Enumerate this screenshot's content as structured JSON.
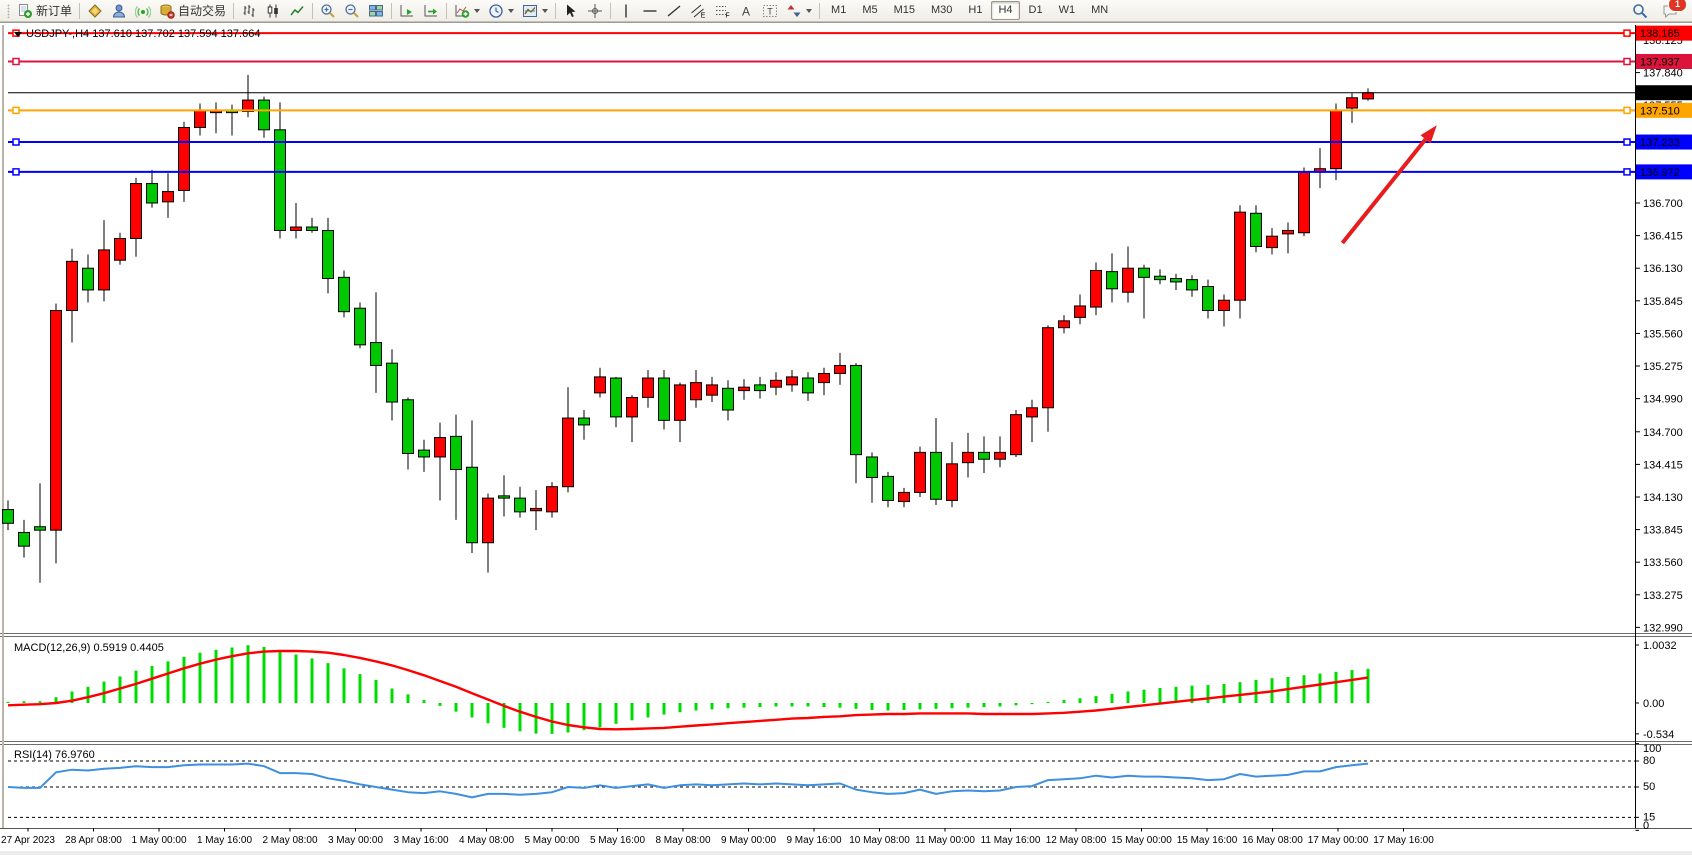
{
  "toolbar": {
    "new_order_label": "新订单",
    "auto_trading_label": "自动交易",
    "timeframes": [
      "M1",
      "M5",
      "M15",
      "M30",
      "H1",
      "H4",
      "D1",
      "W1",
      "MN"
    ],
    "active_timeframe": "H4",
    "notification_count": "1",
    "glyphs": {
      "text": "A",
      "label": "T",
      "channel": "E",
      "fibo": "F"
    }
  },
  "chart": {
    "title": "USDJPY-,H4  137.610 137.702 137.594 137.664",
    "symbol": "USDJPY-",
    "timeframe": "H4"
  },
  "indicators": {
    "macd_label": "MACD(12,26,9) 0.5919 0.4405",
    "rsi_label": "RSI(14) 76.9760"
  },
  "colors": {
    "bull_candle": "#FF0000",
    "bear_candle": "#00C800",
    "macd_histogram": "#00DC00",
    "macd_signal": "#FF0000",
    "rsi_line": "#3E8FE0",
    "arrow": "#E81C1C"
  },
  "chart_data": {
    "type": "candlestick",
    "symbol": "USDJPY",
    "timeframe": "H4",
    "last_ohlc": {
      "open": "137.610",
      "high": "137.702",
      "low": "137.594",
      "close": "137.664"
    },
    "price_axis": {
      "ticks": [
        "138.125",
        "137.840",
        "137.555",
        "137.270",
        "136.985",
        "136.700",
        "136.415",
        "136.130",
        "135.845",
        "135.560",
        "135.275",
        "134.990",
        "134.700",
        "134.415",
        "134.130",
        "133.845",
        "133.560",
        "133.275",
        "132.990"
      ]
    },
    "time_axis": {
      "labels": [
        "27 Apr 2023",
        "28 Apr 08:00",
        "1 May 00:00",
        "1 May 16:00",
        "2 May 08:00",
        "3 May 00:00",
        "3 May 16:00",
        "4 May 08:00",
        "5 May 00:00",
        "5 May 16:00",
        "8 May 08:00",
        "9 May 00:00",
        "9 May 16:00",
        "10 May 08:00",
        "11 May 00:00",
        "11 May 16:00",
        "12 May 08:00",
        "15 May 00:00",
        "15 May 16:00",
        "16 May 08:00",
        "17 May 00:00",
        "17 May 16:00"
      ]
    },
    "candles": [
      [
        134.02,
        134.1,
        133.84,
        133.9
      ],
      [
        133.82,
        133.93,
        133.6,
        133.7
      ],
      [
        133.87,
        134.25,
        133.38,
        133.84
      ],
      [
        133.84,
        135.82,
        133.55,
        135.76
      ],
      [
        135.76,
        136.3,
        135.48,
        136.19
      ],
      [
        136.13,
        136.25,
        135.83,
        135.94
      ],
      [
        135.94,
        136.55,
        135.84,
        136.29
      ],
      [
        136.2,
        136.44,
        136.16,
        136.39
      ],
      [
        136.39,
        136.92,
        136.23,
        136.87
      ],
      [
        136.87,
        136.99,
        136.66,
        136.7
      ],
      [
        136.71,
        136.96,
        136.57,
        136.8
      ],
      [
        136.81,
        137.41,
        136.71,
        137.36
      ],
      [
        137.36,
        137.57,
        137.29,
        137.51
      ],
      [
        137.49,
        137.58,
        137.31,
        137.51
      ],
      [
        137.51,
        137.56,
        137.29,
        137.49
      ],
      [
        137.5,
        137.82,
        137.45,
        137.6
      ],
      [
        137.6,
        137.63,
        137.27,
        137.34
      ],
      [
        137.34,
        137.58,
        136.39,
        136.46
      ],
      [
        136.46,
        136.7,
        136.39,
        136.49
      ],
      [
        136.49,
        136.57,
        136.44,
        136.46
      ],
      [
        136.46,
        136.57,
        135.91,
        136.04
      ],
      [
        136.05,
        136.11,
        135.7,
        135.75
      ],
      [
        135.78,
        135.83,
        135.43,
        135.46
      ],
      [
        135.48,
        135.92,
        135.04,
        135.28
      ],
      [
        135.3,
        135.42,
        134.8,
        134.96
      ],
      [
        134.98,
        135.0,
        134.37,
        134.51
      ],
      [
        134.54,
        134.63,
        134.35,
        134.48
      ],
      [
        134.48,
        134.78,
        134.1,
        134.65
      ],
      [
        134.66,
        134.85,
        133.93,
        134.37
      ],
      [
        134.39,
        134.8,
        133.64,
        133.73
      ],
      [
        133.73,
        134.16,
        133.47,
        134.12
      ],
      [
        134.14,
        134.32,
        133.96,
        134.12
      ],
      [
        134.12,
        134.22,
        133.95,
        134.0
      ],
      [
        134.01,
        134.19,
        133.84,
        134.03
      ],
      [
        134.0,
        134.26,
        133.95,
        134.22
      ],
      [
        134.22,
        135.09,
        134.17,
        134.82
      ],
      [
        134.82,
        134.89,
        134.63,
        134.76
      ],
      [
        135.04,
        135.26,
        135.0,
        135.18
      ],
      [
        135.17,
        135.18,
        134.74,
        134.83
      ],
      [
        134.83,
        135.02,
        134.61,
        135.0
      ],
      [
        135.0,
        135.24,
        134.91,
        135.17
      ],
      [
        135.17,
        135.24,
        134.72,
        134.8
      ],
      [
        134.8,
        135.13,
        134.61,
        135.11
      ],
      [
        134.98,
        135.24,
        134.91,
        135.13
      ],
      [
        135.02,
        135.18,
        134.96,
        135.11
      ],
      [
        135.08,
        135.15,
        134.8,
        134.89
      ],
      [
        135.06,
        135.16,
        134.98,
        135.09
      ],
      [
        135.11,
        135.18,
        134.99,
        135.06
      ],
      [
        135.09,
        135.22,
        135.02,
        135.15
      ],
      [
        135.11,
        135.24,
        135.05,
        135.18
      ],
      [
        135.17,
        135.22,
        134.97,
        135.04
      ],
      [
        135.13,
        135.26,
        135.02,
        135.21
      ],
      [
        135.21,
        135.39,
        135.11,
        135.28
      ],
      [
        135.28,
        135.3,
        134.25,
        134.5
      ],
      [
        134.48,
        134.52,
        134.08,
        134.3
      ],
      [
        134.31,
        134.35,
        134.04,
        134.1
      ],
      [
        134.09,
        134.21,
        134.04,
        134.17
      ],
      [
        134.17,
        134.57,
        134.13,
        134.52
      ],
      [
        134.52,
        134.82,
        134.06,
        134.11
      ],
      [
        134.1,
        134.61,
        134.04,
        134.42
      ],
      [
        134.43,
        134.69,
        134.3,
        134.52
      ],
      [
        134.52,
        134.66,
        134.34,
        134.46
      ],
      [
        134.46,
        134.66,
        134.39,
        134.52
      ],
      [
        134.5,
        134.89,
        134.48,
        134.85
      ],
      [
        134.83,
        134.98,
        134.61,
        134.91
      ],
      [
        134.91,
        135.63,
        134.7,
        135.61
      ],
      [
        135.61,
        135.72,
        135.56,
        135.67
      ],
      [
        135.7,
        135.9,
        135.64,
        135.8
      ],
      [
        135.79,
        136.18,
        135.72,
        136.11
      ],
      [
        136.1,
        136.26,
        135.83,
        135.95
      ],
      [
        135.92,
        136.32,
        135.83,
        136.13
      ],
      [
        136.13,
        136.16,
        135.69,
        136.05
      ],
      [
        136.06,
        136.12,
        135.99,
        136.03
      ],
      [
        136.04,
        136.08,
        135.94,
        136.01
      ],
      [
        136.03,
        136.07,
        135.88,
        135.94
      ],
      [
        135.97,
        136.03,
        135.69,
        135.76
      ],
      [
        135.76,
        135.9,
        135.62,
        135.85
      ],
      [
        135.85,
        136.68,
        135.69,
        136.62
      ],
      [
        136.61,
        136.68,
        136.27,
        136.32
      ],
      [
        136.31,
        136.48,
        136.25,
        136.41
      ],
      [
        136.43,
        136.53,
        136.26,
        136.46
      ],
      [
        136.44,
        137.01,
        136.41,
        136.97
      ],
      [
        136.97,
        137.18,
        136.83,
        137.0
      ],
      [
        137.0,
        137.57,
        136.9,
        137.51
      ],
      [
        137.53,
        137.66,
        137.4,
        137.62
      ],
      [
        137.61,
        137.702,
        137.594,
        137.664
      ]
    ],
    "horizontal_lines": [
      {
        "price": "138.185",
        "color": "#FF0000",
        "width": 2,
        "selected": true
      },
      {
        "price": "137.937",
        "color": "#DC143C",
        "width": 2,
        "selected": true
      },
      {
        "price": "137.510",
        "color": "#FFA500",
        "width": 2,
        "selected": true
      },
      {
        "price": "137.233",
        "color": "#0000FF",
        "width": 2,
        "selected": true
      },
      {
        "price": "136.972",
        "color": "#0000FF",
        "width": 2,
        "selected": true
      }
    ],
    "bid_line": {
      "price": "137.664",
      "color": "#000000"
    },
    "trend_arrow": {
      "from_index": 83.4,
      "from_price": 136.35,
      "to_index": 89.3,
      "to_price": 137.38
    },
    "macd": {
      "label": "MACD(12,26,9) 0.5919 0.4405",
      "value": 0.5919,
      "signal_value": 0.4405,
      "axis": [
        {
          "v": 1.0032,
          "label": "1.0032"
        },
        {
          "v": 0,
          "label": "0.00"
        },
        {
          "v": -0.534,
          "label": "-0.534"
        }
      ],
      "histogram": [
        0.02,
        0.03,
        0.03,
        0.1,
        0.2,
        0.28,
        0.37,
        0.46,
        0.56,
        0.64,
        0.72,
        0.8,
        0.87,
        0.92,
        0.96,
        1.0,
        0.97,
        0.9,
        0.84,
        0.77,
        0.69,
        0.6,
        0.5,
        0.4,
        0.25,
        0.15,
        0.05,
        -0.05,
        -0.15,
        -0.25,
        -0.35,
        -0.43,
        -0.49,
        -0.53,
        -0.534,
        -0.51,
        -0.47,
        -0.42,
        -0.36,
        -0.3,
        -0.25,
        -0.2,
        -0.16,
        -0.13,
        -0.11,
        -0.09,
        -0.08,
        -0.07,
        -0.06,
        -0.06,
        -0.06,
        -0.07,
        -0.08,
        -0.1,
        -0.12,
        -0.13,
        -0.12,
        -0.11,
        -0.1,
        -0.09,
        -0.08,
        -0.07,
        -0.06,
        -0.04,
        -0.02,
        0.02,
        0.05,
        0.08,
        0.12,
        0.16,
        0.2,
        0.23,
        0.26,
        0.28,
        0.3,
        0.31,
        0.33,
        0.36,
        0.4,
        0.43,
        0.45,
        0.48,
        0.51,
        0.54,
        0.57,
        0.59
      ],
      "signal": [
        -0.04,
        -0.03,
        -0.02,
        0.0,
        0.04,
        0.1,
        0.17,
        0.25,
        0.33,
        0.42,
        0.51,
        0.6,
        0.68,
        0.75,
        0.81,
        0.86,
        0.89,
        0.9,
        0.9,
        0.89,
        0.87,
        0.83,
        0.78,
        0.72,
        0.65,
        0.57,
        0.48,
        0.38,
        0.28,
        0.17,
        0.06,
        -0.05,
        -0.15,
        -0.24,
        -0.32,
        -0.38,
        -0.42,
        -0.45,
        -0.455,
        -0.45,
        -0.44,
        -0.43,
        -0.41,
        -0.39,
        -0.37,
        -0.35,
        -0.33,
        -0.31,
        -0.29,
        -0.27,
        -0.26,
        -0.24,
        -0.23,
        -0.21,
        -0.2,
        -0.19,
        -0.19,
        -0.18,
        -0.18,
        -0.18,
        -0.18,
        -0.19,
        -0.19,
        -0.19,
        -0.19,
        -0.18,
        -0.17,
        -0.15,
        -0.13,
        -0.1,
        -0.07,
        -0.04,
        -0.01,
        0.02,
        0.05,
        0.08,
        0.11,
        0.14,
        0.17,
        0.2,
        0.24,
        0.28,
        0.32,
        0.36,
        0.4,
        0.44
      ]
    },
    "rsi": {
      "label": "RSI(14) 76.9760",
      "value": 76.976,
      "levels": [
        80,
        50,
        15
      ],
      "axis_labels": [
        {
          "v": 100,
          "label": "100"
        },
        {
          "v": 80,
          "label": "80"
        },
        {
          "v": 50,
          "label": "50"
        },
        {
          "v": 15,
          "label": "15"
        },
        {
          "v": 0,
          "label": "0"
        }
      ],
      "values": [
        50,
        49,
        49,
        67,
        70,
        69,
        71,
        72,
        74,
        73,
        73,
        75,
        76,
        76,
        76,
        77,
        74,
        66,
        66,
        65,
        60,
        57,
        53,
        50,
        47,
        44,
        43,
        45,
        42,
        38,
        42,
        42,
        41,
        42,
        44,
        50,
        49,
        52,
        49,
        51,
        53,
        49,
        52,
        53,
        52,
        53,
        54,
        53,
        54,
        53,
        52,
        53,
        54,
        47,
        44,
        42,
        43,
        47,
        42,
        45,
        46,
        45,
        46,
        50,
        51,
        58,
        59,
        60,
        63,
        61,
        63,
        62,
        62,
        61,
        60,
        58,
        59,
        65,
        62,
        63,
        64,
        68,
        68,
        73,
        75,
        77
      ]
    }
  }
}
